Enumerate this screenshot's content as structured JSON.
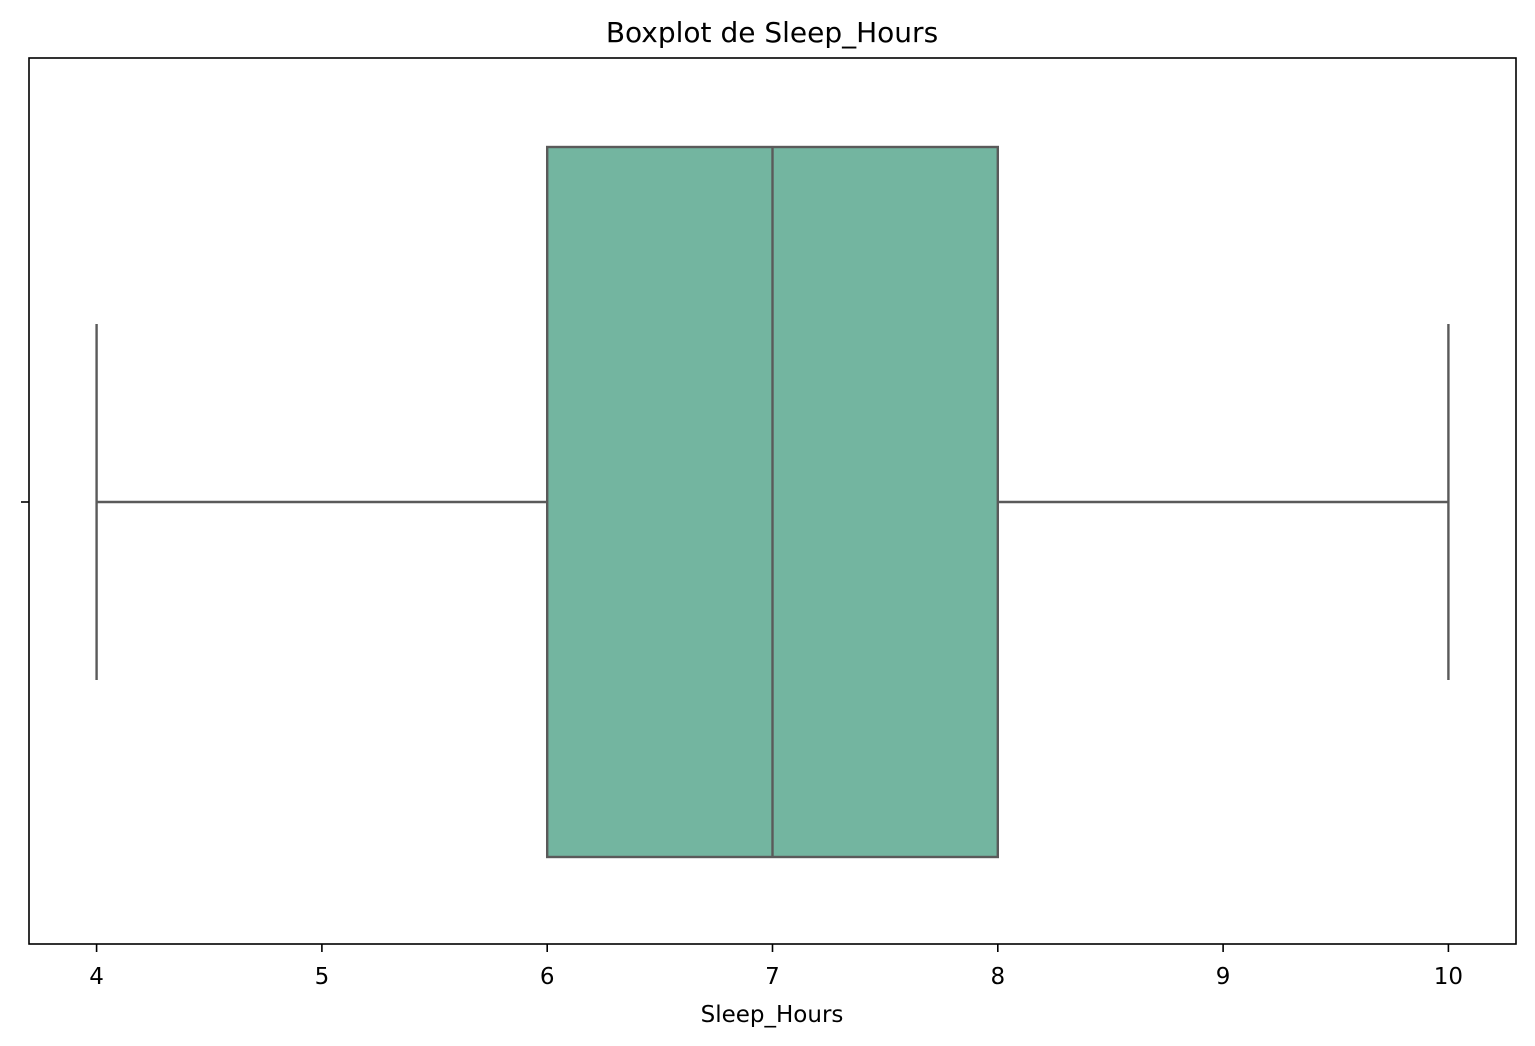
{
  "chart_data": {
    "type": "box",
    "title": "Boxplot de Sleep_Hours",
    "xlabel": "Sleep_Hours",
    "ylabel": "",
    "xlim": [
      3.7,
      10.3
    ],
    "x_ticks": [
      4,
      5,
      6,
      7,
      8,
      9,
      10
    ],
    "orientation": "horizontal",
    "grid": false,
    "box": {
      "whisker_low": 4,
      "q1": 6,
      "median": 7,
      "q3": 8,
      "whisker_high": 10
    },
    "colors": {
      "box_fill": "#73b5a0",
      "line": "#5a5a5a",
      "axes": "#000000"
    }
  }
}
